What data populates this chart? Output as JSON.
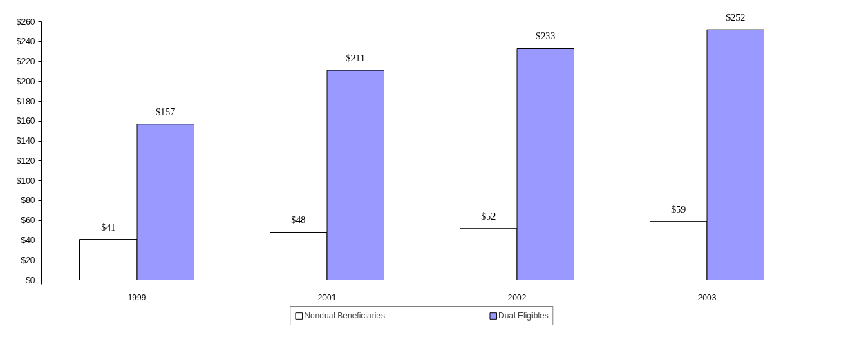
{
  "chart_data": {
    "type": "bar",
    "categories": [
      "1999",
      "2001",
      "2002",
      "2003"
    ],
    "series": [
      {
        "name": "Nondual Beneficiaries",
        "color": "#ffffff",
        "values": [
          41,
          48,
          52,
          59
        ],
        "value_labels": [
          "$41",
          "$48",
          "$52",
          "$59"
        ]
      },
      {
        "name": "Dual Eligibles",
        "color": "#9999ff",
        "values": [
          157,
          211,
          233,
          252
        ],
        "value_labels": [
          "$157",
          "$211",
          "$233",
          "$252"
        ]
      }
    ],
    "ylim": [
      0,
      260
    ],
    "yticks": [
      {
        "value": 0,
        "label": "$0"
      },
      {
        "value": 20,
        "label": "$20"
      },
      {
        "value": 40,
        "label": "$40"
      },
      {
        "value": 60,
        "label": "$60"
      },
      {
        "value": 80,
        "label": "$80"
      },
      {
        "value": 100,
        "label": "$100"
      },
      {
        "value": 120,
        "label": "$120"
      },
      {
        "value": 140,
        "label": "$140"
      },
      {
        "value": 160,
        "label": "$160"
      },
      {
        "value": 180,
        "label": "$180"
      },
      {
        "value": 200,
        "label": "$200"
      },
      {
        "value": 220,
        "label": "$220"
      },
      {
        "value": 240,
        "label": "$240"
      },
      {
        "value": 260,
        "label": "$260"
      }
    ],
    "grid": false,
    "legend": "bottom"
  }
}
